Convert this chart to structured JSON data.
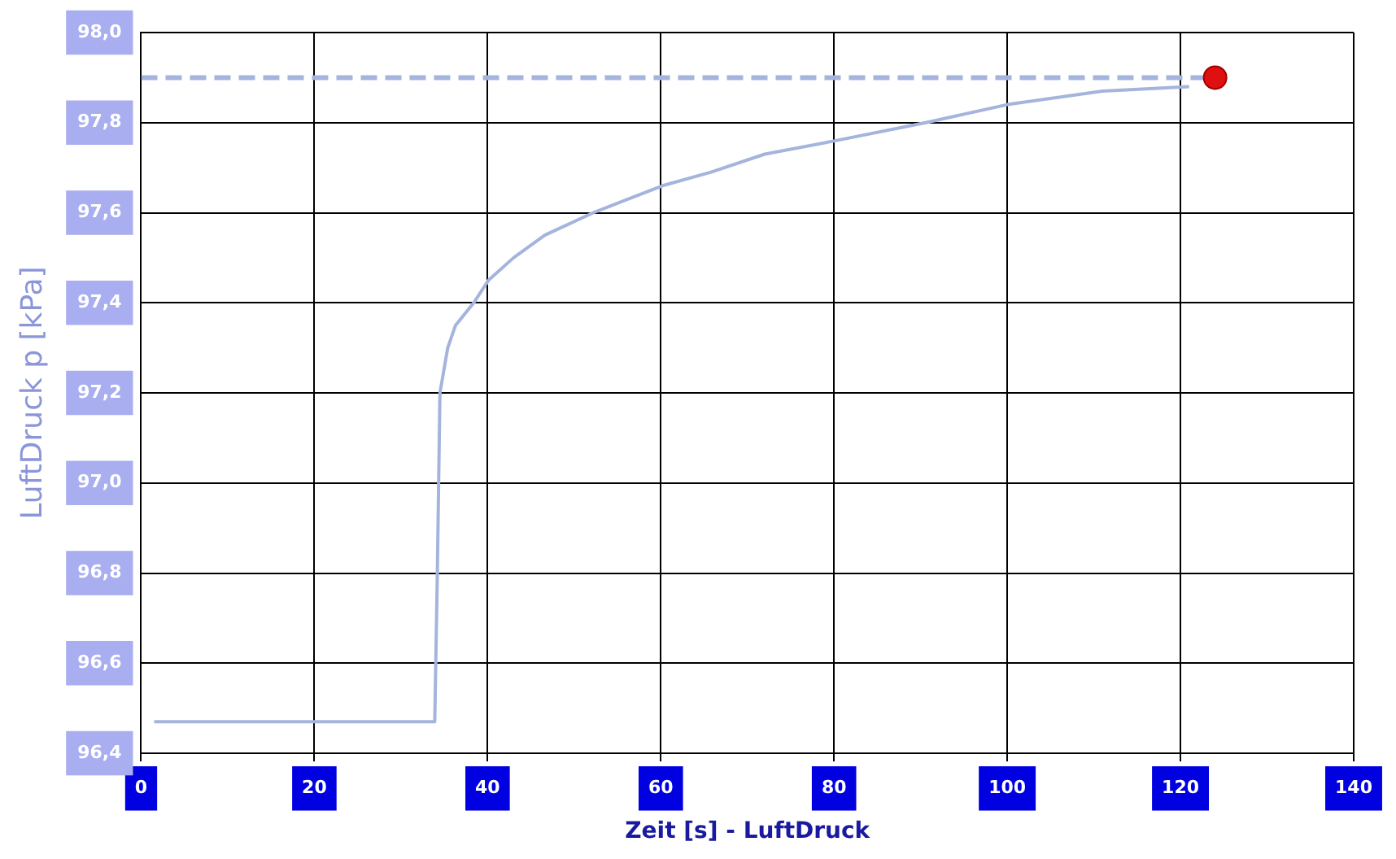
{
  "chart_data": {
    "type": "line",
    "xlabel": "Zeit [s] - LuftDruck",
    "ylabel": "LuftDruck p [kPa]",
    "xlim": [
      0,
      140
    ],
    "xticks": [
      0,
      20,
      40,
      60,
      80,
      100,
      120,
      140
    ],
    "ylim": [
      96.4,
      98.0
    ],
    "yticks": [
      {
        "value": 96.4,
        "label": "96,4"
      },
      {
        "value": 96.6,
        "label": "96,6"
      },
      {
        "value": 96.8,
        "label": "96,8"
      },
      {
        "value": 97.0,
        "label": "97,0"
      },
      {
        "value": 97.2,
        "label": "97,2"
      },
      {
        "value": 97.4,
        "label": "97,4"
      },
      {
        "value": 97.6,
        "label": "97,6"
      },
      {
        "value": 97.8,
        "label": "97,8"
      },
      {
        "value": 98.0,
        "label": "98,0"
      }
    ],
    "grid": true,
    "legend": false,
    "series": [
      {
        "color": "#a4b4dc",
        "x": [
          1.5,
          10,
          20,
          28,
          33.9,
          34.2,
          34.5,
          35.4,
          36.3,
          38.4,
          40.1,
          43,
          46.6,
          52.2,
          60.2,
          65.8,
          72,
          80.2,
          90.6,
          100,
          111,
          121
        ],
        "values": [
          96.47,
          96.47,
          96.47,
          96.47,
          96.47,
          96.8,
          97.2,
          97.3,
          97.35,
          97.4,
          97.45,
          97.5,
          97.55,
          97.6,
          97.66,
          97.69,
          97.73,
          97.76,
          97.8,
          97.84,
          97.87,
          97.88
        ]
      },
      {
        "type": "line",
        "line_style": "dashed",
        "color": "#a4b4dc",
        "x": [
          0,
          124
        ],
        "values": [
          97.9,
          97.9
        ]
      },
      {
        "type": "scatter",
        "color": "#e01010",
        "x": [
          124
        ],
        "values": [
          97.9
        ]
      }
    ]
  }
}
